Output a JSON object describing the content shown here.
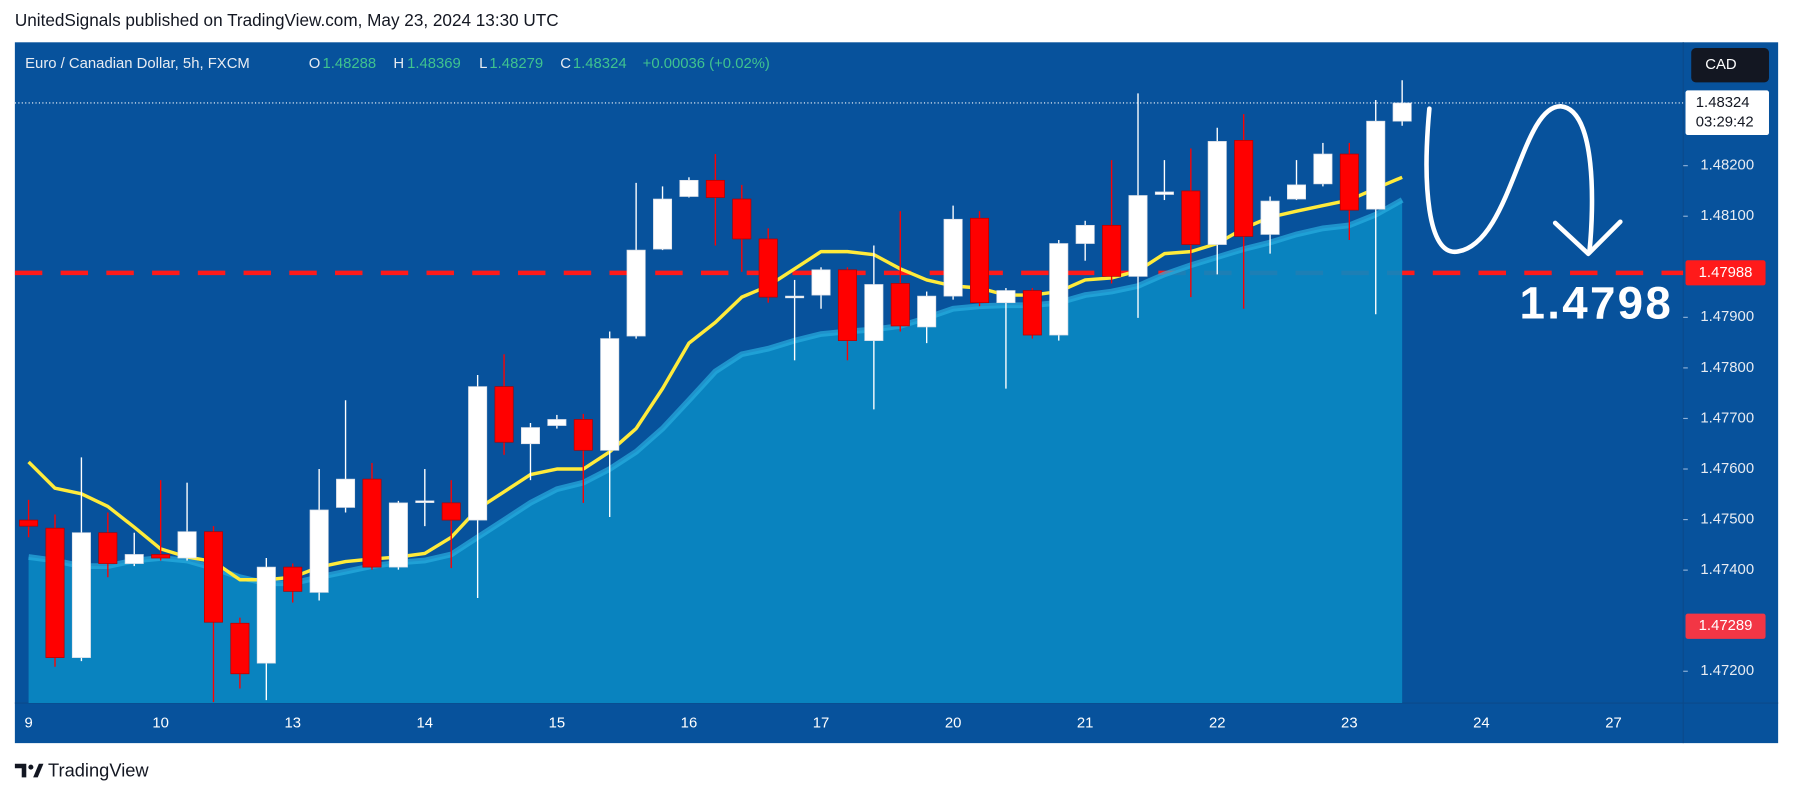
{
  "header": {
    "published": "UnitedSignals published on TradingView.com, May 23, 2024 13:30 UTC",
    "brand": "TradingView"
  },
  "chart_data": {
    "type": "candlestick",
    "symbol": "Euro / Canadian Dollar, 5h, FXCM",
    "ohlc_labels": [
      "O",
      "H",
      "L",
      "C"
    ],
    "change": "+0.00036 (+0.02%)",
    "currency": "CAD",
    "countdown": "03:29:42",
    "annotation": "1.4798",
    "categories": [
      "9",
      null,
      null,
      null,
      null,
      "10",
      null,
      null,
      null,
      null,
      "13",
      null,
      null,
      null,
      null,
      "14",
      null,
      null,
      null,
      null,
      "15",
      null,
      null,
      null,
      null,
      "16",
      null,
      null,
      null,
      null,
      "17",
      null,
      null,
      null,
      null,
      "20",
      null,
      null,
      null,
      null,
      "21",
      null,
      null,
      null,
      null,
      "22",
      null,
      null,
      null,
      null,
      "23",
      null,
      null,
      null,
      null,
      "24",
      null,
      null,
      null,
      null,
      "27",
      null,
      null
    ],
    "open": [
      1.47499,
      1.47483,
      1.47227,
      1.47474,
      1.47413,
      1.47431,
      1.47424,
      1.47476,
      1.47295,
      1.47216,
      1.47406,
      1.47356,
      1.47524,
      1.4758,
      1.47406,
      1.47535,
      1.47533,
      1.47499,
      1.47763,
      1.4765,
      1.47686,
      1.47698,
      1.47637,
      1.47863,
      1.48035,
      1.48139,
      1.48171,
      1.48134,
      1.48055,
      1.47942,
      1.47944,
      1.47994,
      1.47854,
      1.47967,
      1.47881,
      1.47942,
      1.48096,
      1.47929,
      1.47953,
      1.47865,
      1.48046,
      1.48082,
      1.47981,
      1.48143,
      1.4815,
      1.48044,
      1.4825,
      1.48064,
      1.48134,
      1.48164,
      1.48223,
      1.48114,
      1.48288,
      null,
      null,
      null,
      null,
      null,
      null,
      null,
      null,
      null,
      null
    ],
    "high": [
      1.47539,
      1.4751,
      1.47623,
      1.47514,
      1.47474,
      1.47578,
      1.47573,
      1.47487,
      1.47306,
      1.47424,
      1.47413,
      1.476,
      1.47736,
      1.47612,
      1.47537,
      1.476,
      1.47578,
      1.47786,
      1.47827,
      1.47691,
      1.47707,
      1.47709,
      1.47872,
      1.48166,
      1.48159,
      1.48177,
      1.48223,
      1.48162,
      1.48076,
      1.47974,
      1.47999,
      1.47999,
      1.48042,
      1.4811,
      1.47951,
      1.48121,
      1.4811,
      1.47958,
      1.47958,
      1.48053,
      1.48091,
      1.48211,
      1.48343,
      1.48211,
      1.48234,
      1.48275,
      1.48302,
      1.48139,
      1.48211,
      1.48245,
      1.48245,
      1.4833,
      1.48369,
      null,
      null,
      null,
      null,
      null,
      null,
      null,
      null,
      null,
      null
    ],
    "low": [
      1.47465,
      1.47209,
      1.4722,
      1.47386,
      1.47408,
      1.47419,
      1.47419,
      1.47139,
      1.47166,
      1.47143,
      1.47336,
      1.4734,
      1.47514,
      1.47401,
      1.47401,
      1.47487,
      1.47404,
      1.47345,
      1.47628,
      1.47578,
      1.4768,
      1.47533,
      1.47505,
      1.47858,
      1.48033,
      1.48137,
      1.48042,
      1.4799,
      1.47929,
      1.47815,
      1.47917,
      1.47815,
      1.47718,
      1.47872,
      1.47849,
      1.47935,
      1.47922,
      1.47759,
      1.47858,
      1.47854,
      1.48012,
      1.47967,
      1.47899,
      1.48132,
      1.4794,
      1.47985,
      1.47917,
      1.48026,
      1.48132,
      1.48159,
      1.48053,
      1.47906,
      1.48279,
      null,
      null,
      null,
      null,
      null,
      null,
      null,
      null,
      null,
      null
    ],
    "close": [
      1.47487,
      1.47227,
      1.47474,
      1.47413,
      1.47431,
      1.47424,
      1.47476,
      1.47297,
      1.47195,
      1.47406,
      1.47358,
      1.47519,
      1.4758,
      1.47406,
      1.47533,
      1.47537,
      1.47499,
      1.47763,
      1.47653,
      1.47682,
      1.47698,
      1.47637,
      1.47858,
      1.48033,
      1.48134,
      1.48171,
      1.48137,
      1.48055,
      1.4794,
      1.47942,
      1.47994,
      1.47854,
      1.47965,
      1.47883,
      1.47942,
      1.48094,
      1.47929,
      1.47953,
      1.47865,
      1.48046,
      1.48082,
      1.47981,
      1.48141,
      1.48148,
      1.48044,
      1.48248,
      1.4806,
      1.4813,
      1.48162,
      1.48223,
      1.48112,
      1.48288,
      1.48324,
      null,
      null,
      null,
      null,
      null,
      null,
      null,
      null,
      null,
      null
    ],
    "up_color": "#ffffff",
    "down_color": "#ff0000",
    "series": [
      {
        "kind": "area",
        "color": "#0a88c2",
        "line_color": "#2aaee0",
        "values": [
          1.47426,
          1.47419,
          1.47408,
          1.47408,
          1.47419,
          1.47424,
          1.47419,
          1.47404,
          1.47386,
          1.47374,
          1.47374,
          1.47386,
          1.47397,
          1.47408,
          1.47415,
          1.47419,
          1.47431,
          1.47465,
          1.47499,
          1.47533,
          1.4756,
          1.47573,
          1.476,
          1.47634,
          1.4768,
          1.47736,
          1.47793,
          1.47827,
          1.47838,
          1.47854,
          1.47867,
          1.47872,
          1.47876,
          1.47883,
          1.47899,
          1.47917,
          1.47922,
          1.47924,
          1.47924,
          1.47929,
          1.47944,
          1.47951,
          1.47962,
          1.47985,
          1.48003,
          1.48019,
          1.48035,
          1.48048,
          1.48064,
          1.48076,
          1.48082,
          1.48103,
          1.48132,
          null,
          null,
          null,
          null,
          null,
          null,
          null,
          null,
          null,
          null
        ]
      },
      {
        "kind": "line",
        "color": "#ffeb3b",
        "values": [
          1.47614,
          1.47562,
          1.47551,
          1.47526,
          1.47485,
          1.47442,
          1.47426,
          1.47417,
          1.47381,
          1.47381,
          1.47386,
          1.47406,
          1.47417,
          1.47422,
          1.47426,
          1.47433,
          1.47465,
          1.47521,
          1.47555,
          1.47589,
          1.476,
          1.476,
          1.47634,
          1.4768,
          1.47759,
          1.47849,
          1.4789,
          1.4794,
          1.47962,
          1.47996,
          1.4803,
          1.4803,
          1.48024,
          1.47996,
          1.47974,
          1.47962,
          1.47958,
          1.47944,
          1.47944,
          1.47951,
          1.47974,
          1.47978,
          1.47992,
          1.48026,
          1.4803,
          1.48046,
          1.48076,
          1.48098,
          1.4811,
          1.48121,
          1.48132,
          1.48155,
          1.48177,
          null,
          null,
          null,
          null,
          null,
          null,
          null,
          null,
          null,
          null
        ]
      }
    ],
    "levels": [
      {
        "value": 1.47988,
        "color": "#ff1a1a",
        "style": "dashed"
      },
      {
        "value": 1.47289,
        "color": "#f23645",
        "style": "label"
      }
    ],
    "ylim": [
      1.47137,
      1.48444
    ],
    "yticks": [
      {
        "value": 1.472,
        "label": "1.47200"
      },
      {
        "value": 1.474,
        "label": "1.47400"
      },
      {
        "value": 1.475,
        "label": "1.47500"
      },
      {
        "value": 1.476,
        "label": "1.47600"
      },
      {
        "value": 1.477,
        "label": "1.47700"
      },
      {
        "value": 1.478,
        "label": "1.47800"
      },
      {
        "value": 1.479,
        "label": "1.47900"
      },
      {
        "value": 1.481,
        "label": "1.48100"
      },
      {
        "value": 1.482,
        "label": "1.48200"
      }
    ],
    "grid": false
  }
}
